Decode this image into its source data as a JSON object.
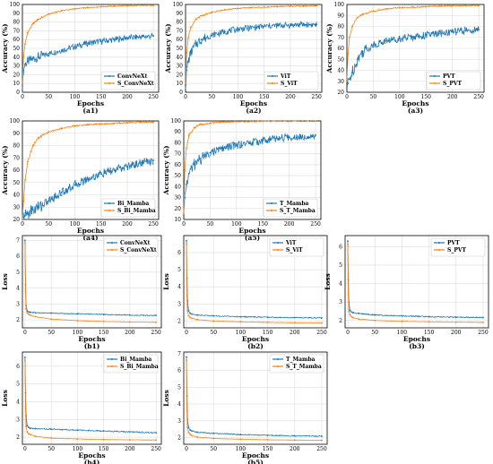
{
  "colors": {
    "blue": "#1f77b4",
    "orange": "#ff7f0e",
    "grid": "#dcdcdc"
  },
  "chart_data": [
    {
      "id": "a1",
      "type": "line",
      "panel_label": "(a1)",
      "xlabel": "Epochs",
      "ylabel": "Accuracy (%)",
      "xlim": [
        0,
        260
      ],
      "ylim": [
        0,
        100
      ],
      "xticks": [
        0,
        50,
        100,
        150,
        200,
        250
      ],
      "yticks": [
        0,
        10,
        20,
        30,
        40,
        50,
        60,
        70,
        80,
        90,
        100
      ],
      "grid": true,
      "legend_position": "bottom-right",
      "series": [
        {
          "name": "ConvNeXt",
          "color": "#1f77b4",
          "x": [
            0,
            2,
            5,
            10,
            20,
            30,
            50,
            75,
            100,
            125,
            150,
            175,
            200,
            225,
            250
          ],
          "y": [
            2,
            25,
            32,
            35,
            38,
            40,
            44,
            48,
            52,
            56,
            58,
            60,
            62,
            63,
            64
          ]
        },
        {
          "name": "S_ConvNeXt",
          "color": "#ff7f0e",
          "x": [
            0,
            2,
            5,
            10,
            20,
            30,
            50,
            75,
            100,
            125,
            150,
            175,
            200,
            225,
            250
          ],
          "y": [
            10,
            40,
            55,
            68,
            78,
            83,
            89,
            93,
            95,
            96.5,
            97.5,
            98,
            98.5,
            99,
            99
          ]
        }
      ]
    },
    {
      "id": "a2",
      "type": "line",
      "panel_label": "(a2)",
      "xlabel": "Epochs",
      "ylabel": "Accuracy (%)",
      "xlim": [
        0,
        260
      ],
      "ylim": [
        0,
        100
      ],
      "xticks": [
        0,
        50,
        100,
        150,
        200,
        250
      ],
      "yticks": [
        0,
        10,
        20,
        30,
        40,
        50,
        60,
        70,
        80,
        90,
        100
      ],
      "grid": true,
      "legend_position": "bottom-right",
      "series": [
        {
          "name": "ViT",
          "color": "#1f77b4",
          "x": [
            0,
            2,
            5,
            10,
            20,
            30,
            50,
            75,
            100,
            125,
            150,
            175,
            200,
            225,
            250
          ],
          "y": [
            8,
            25,
            35,
            45,
            55,
            60,
            65,
            69,
            72,
            73.5,
            75,
            76,
            76.5,
            77,
            77
          ]
        },
        {
          "name": "S_ViT",
          "color": "#ff7f0e",
          "x": [
            0,
            2,
            5,
            10,
            20,
            30,
            50,
            75,
            100,
            125,
            150,
            175,
            200,
            225,
            250
          ],
          "y": [
            10,
            45,
            62,
            74,
            83,
            87,
            91,
            94,
            95.5,
            96.5,
            97,
            97.5,
            98,
            98,
            98.5
          ]
        }
      ]
    },
    {
      "id": "a3",
      "type": "line",
      "panel_label": "(a3)",
      "xlabel": "Epochs",
      "ylabel": "Accuracy (%)",
      "xlim": [
        0,
        260
      ],
      "ylim": [
        20,
        100
      ],
      "xticks": [
        0,
        50,
        100,
        150,
        200,
        250
      ],
      "yticks": [
        20,
        30,
        40,
        50,
        60,
        70,
        80,
        90,
        100
      ],
      "grid": true,
      "legend_position": "bottom-right",
      "series": [
        {
          "name": "PVT",
          "color": "#1f77b4",
          "x": [
            0,
            2,
            5,
            10,
            20,
            30,
            50,
            75,
            100,
            125,
            150,
            175,
            200,
            225,
            250
          ],
          "y": [
            25,
            28,
            32,
            38,
            50,
            57,
            63,
            67,
            69,
            70.5,
            72,
            73.5,
            75,
            76,
            77
          ]
        },
        {
          "name": "S_PVT",
          "color": "#ff7f0e",
          "x": [
            0,
            2,
            5,
            10,
            20,
            30,
            50,
            75,
            100,
            125,
            150,
            175,
            200,
            225,
            250
          ],
          "y": [
            30,
            55,
            70,
            80,
            88,
            91,
            94,
            96,
            97,
            97.5,
            98,
            98.5,
            98.8,
            99,
            99
          ]
        }
      ]
    },
    {
      "id": "a4",
      "type": "line",
      "panel_label": "(a4)",
      "xlabel": "Epochs",
      "ylabel": "Accuracy (%)",
      "xlim": [
        0,
        260
      ],
      "ylim": [
        20,
        100
      ],
      "xticks": [
        0,
        50,
        100,
        150,
        200,
        250
      ],
      "yticks": [
        20,
        30,
        40,
        50,
        60,
        70,
        80,
        90,
        100
      ],
      "grid": true,
      "legend_position": "bottom-right",
      "series": [
        {
          "name": "Bi_Mamba",
          "color": "#1f77b4",
          "x": [
            0,
            2,
            5,
            10,
            20,
            30,
            50,
            75,
            100,
            125,
            150,
            175,
            200,
            225,
            250
          ],
          "y": [
            20,
            22,
            23,
            25,
            28,
            30,
            35,
            42,
            48,
            53,
            57,
            60,
            63,
            66,
            68
          ]
        },
        {
          "name": "S_Bi_Mamba",
          "color": "#ff7f0e",
          "x": [
            0,
            2,
            5,
            10,
            20,
            30,
            50,
            75,
            100,
            125,
            150,
            175,
            200,
            225,
            250
          ],
          "y": [
            20,
            35,
            52,
            67,
            80,
            86,
            91,
            94,
            96,
            97,
            97.5,
            98,
            98.5,
            99,
            99
          ]
        }
      ]
    },
    {
      "id": "a5",
      "type": "line",
      "panel_label": "(a5)",
      "xlabel": "Epochs",
      "ylabel": "Accuracy (%)",
      "xlim": [
        0,
        260
      ],
      "ylim": [
        10,
        100
      ],
      "xticks": [
        0,
        50,
        100,
        150,
        200,
        250
      ],
      "yticks": [
        10,
        20,
        30,
        40,
        50,
        60,
        70,
        80,
        90,
        100
      ],
      "grid": true,
      "legend_position": "bottom-right",
      "series": [
        {
          "name": "T_Mamba",
          "color": "#1f77b4",
          "x": [
            0,
            2,
            5,
            10,
            20,
            30,
            50,
            75,
            100,
            125,
            150,
            175,
            200,
            225,
            250
          ],
          "y": [
            14,
            30,
            42,
            52,
            60,
            65,
            71,
            75,
            78,
            80,
            82,
            84,
            85,
            86,
            87
          ]
        },
        {
          "name": "S_T_Mamba",
          "color": "#ff7f0e",
          "x": [
            0,
            2,
            5,
            10,
            20,
            30,
            50,
            75,
            100,
            125,
            150,
            175,
            200,
            225,
            250
          ],
          "y": [
            15,
            55,
            75,
            87,
            94,
            96.5,
            98,
            99,
            99.3,
            99.5,
            99.6,
            99.7,
            99.8,
            99.8,
            99.8
          ]
        }
      ]
    },
    {
      "id": "b1",
      "type": "line",
      "panel_label": "(b1)",
      "xlabel": "Epochs",
      "ylabel": "Loss",
      "xlim": [
        -5,
        260
      ],
      "ylim": [
        1.5,
        7.3
      ],
      "xticks": [
        0,
        50,
        100,
        150,
        200,
        250
      ],
      "yticks": [
        2,
        3,
        4,
        5,
        6,
        7
      ],
      "grid": true,
      "legend_position": "top-right",
      "series": [
        {
          "name": "ConvNeXt",
          "color": "#1f77b4",
          "x": [
            0,
            1,
            2,
            4,
            7,
            10,
            20,
            50,
            100,
            150,
            200,
            250
          ],
          "y": [
            7.0,
            4.2,
            2.9,
            2.55,
            2.5,
            2.48,
            2.45,
            2.42,
            2.38,
            2.34,
            2.3,
            2.28
          ]
        },
        {
          "name": "S_ConvNeXt",
          "color": "#ff7f0e",
          "x": [
            0,
            1,
            2,
            4,
            7,
            10,
            20,
            50,
            100,
            150,
            200,
            250
          ],
          "y": [
            6.8,
            3.8,
            2.7,
            2.45,
            2.35,
            2.3,
            2.2,
            2.05,
            1.95,
            1.9,
            1.87,
            1.85
          ]
        }
      ]
    },
    {
      "id": "b2",
      "type": "line",
      "panel_label": "(b2)",
      "xlabel": "Epochs",
      "ylabel": "Loss",
      "xlim": [
        -5,
        260
      ],
      "ylim": [
        1.6,
        7.0
      ],
      "xticks": [
        0,
        50,
        100,
        150,
        200,
        250
      ],
      "yticks": [
        2,
        3,
        4,
        5,
        6
      ],
      "grid": true,
      "legend_position": "top-right",
      "series": [
        {
          "name": "ViT",
          "color": "#1f77b4",
          "x": [
            0,
            1,
            2,
            4,
            7,
            10,
            20,
            50,
            100,
            150,
            200,
            250
          ],
          "y": [
            6.7,
            4.5,
            3.2,
            2.6,
            2.45,
            2.4,
            2.35,
            2.3,
            2.25,
            2.22,
            2.2,
            2.18
          ]
        },
        {
          "name": "S_ViT",
          "color": "#ff7f0e",
          "x": [
            0,
            1,
            2,
            4,
            7,
            10,
            20,
            50,
            100,
            150,
            200,
            250
          ],
          "y": [
            6.5,
            3.5,
            2.6,
            2.3,
            2.2,
            2.15,
            2.08,
            2.0,
            1.95,
            1.92,
            1.9,
            1.89
          ]
        }
      ]
    },
    {
      "id": "b3",
      "type": "line",
      "panel_label": "(b3)",
      "xlabel": "Epochs",
      "ylabel": "Loss",
      "xlim": [
        -5,
        260
      ],
      "ylim": [
        1.6,
        6.6
      ],
      "xticks": [
        0,
        50,
        100,
        150,
        200,
        250
      ],
      "yticks": [
        2,
        3,
        4,
        5,
        6
      ],
      "grid": true,
      "legend_position": "top-right",
      "series": [
        {
          "name": "PVT",
          "color": "#1f77b4",
          "x": [
            0,
            1,
            2,
            4,
            7,
            10,
            20,
            50,
            100,
            150,
            200,
            250
          ],
          "y": [
            6.3,
            4.2,
            3.0,
            2.55,
            2.45,
            2.42,
            2.38,
            2.3,
            2.25,
            2.2,
            2.18,
            2.16
          ]
        },
        {
          "name": "S_PVT",
          "color": "#ff7f0e",
          "x": [
            0,
            1,
            2,
            4,
            7,
            10,
            20,
            50,
            100,
            150,
            200,
            250
          ],
          "y": [
            6.1,
            3.4,
            2.5,
            2.3,
            2.2,
            2.15,
            2.08,
            2.0,
            1.95,
            1.93,
            1.91,
            1.9
          ]
        }
      ]
    },
    {
      "id": "b4",
      "type": "line",
      "panel_label": "(b4)",
      "xlabel": "Epochs",
      "ylabel": "Loss",
      "xlim": [
        -5,
        260
      ],
      "ylim": [
        1.6,
        6.8
      ],
      "xticks": [
        0,
        50,
        100,
        150,
        200,
        250
      ],
      "yticks": [
        2,
        3,
        4,
        5,
        6
      ],
      "grid": true,
      "legend_position": "top-right",
      "series": [
        {
          "name": "Bi_Mamba",
          "color": "#1f77b4",
          "x": [
            0,
            1,
            2,
            4,
            7,
            10,
            20,
            50,
            100,
            150,
            200,
            250
          ],
          "y": [
            6.5,
            4.5,
            3.2,
            2.65,
            2.55,
            2.5,
            2.48,
            2.45,
            2.4,
            2.35,
            2.3,
            2.25
          ]
        },
        {
          "name": "S_Bi_Mamba",
          "color": "#ff7f0e",
          "x": [
            0,
            1,
            2,
            4,
            7,
            10,
            20,
            50,
            100,
            150,
            200,
            250
          ],
          "y": [
            6.3,
            3.6,
            2.6,
            2.3,
            2.2,
            2.15,
            2.05,
            1.95,
            1.9,
            1.87,
            1.85,
            1.84
          ]
        }
      ]
    },
    {
      "id": "b5",
      "type": "line",
      "panel_label": "(b5)",
      "xlabel": "Epochs",
      "ylabel": "Loss",
      "xlim": [
        -5,
        260
      ],
      "ylim": [
        1.6,
        7.1
      ],
      "xticks": [
        0,
        50,
        100,
        150,
        200,
        250
      ],
      "yticks": [
        2,
        3,
        4,
        5,
        6,
        7
      ],
      "grid": true,
      "legend_position": "top-right",
      "series": [
        {
          "name": "T_Mamba",
          "color": "#1f77b4",
          "x": [
            0,
            1,
            2,
            4,
            7,
            10,
            20,
            50,
            100,
            150,
            200,
            250
          ],
          "y": [
            6.8,
            4.5,
            3.1,
            2.6,
            2.45,
            2.4,
            2.32,
            2.25,
            2.18,
            2.13,
            2.1,
            2.08
          ]
        },
        {
          "name": "S_T_Mamba",
          "color": "#ff7f0e",
          "x": [
            0,
            1,
            2,
            4,
            7,
            10,
            20,
            50,
            100,
            150,
            200,
            250
          ],
          "y": [
            6.6,
            3.6,
            2.6,
            2.3,
            2.18,
            2.12,
            2.03,
            1.95,
            1.9,
            1.87,
            1.85,
            1.84
          ]
        }
      ]
    }
  ]
}
